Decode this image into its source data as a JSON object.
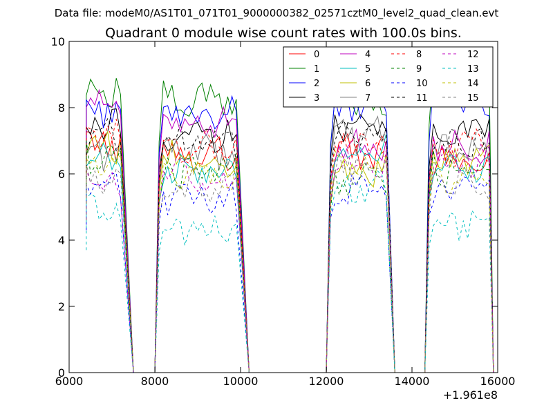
{
  "chart_data": {
    "type": "line",
    "suptitle": "Data file: modeM0/AS1T01_071T01_9000000382_02571cztM0_level2_quad_clean.evt",
    "title": "Quadrant 0 module wise count rates with 100.0s bins.",
    "xlabel": "",
    "ylabel": "",
    "x_offset_label": "+1.961e8",
    "xlim": [
      6000,
      16000
    ],
    "ylim": [
      0,
      10
    ],
    "xticks": [
      "6000",
      "8000",
      "10000",
      "12000",
      "14000",
      "16000"
    ],
    "yticks": [
      "0",
      "2",
      "4",
      "6",
      "8",
      "10"
    ],
    "grid": false,
    "legend": {
      "placement": "top-right",
      "columns": 4
    },
    "segments": [
      {
        "x_start": 6400,
        "x_end": 7200,
        "x_fall": 7500
      },
      {
        "x_start": 8200,
        "x_end": 9900,
        "x_fall": 10200
      },
      {
        "x_start": 12200,
        "x_end": 13400,
        "x_fall": 13600
      },
      {
        "x_start": 14500,
        "x_end": 15800,
        "x_fall": 15900
      }
    ],
    "series": [
      {
        "name": "0",
        "color": "#ff0000",
        "style": "solid",
        "values": [
          6.9,
          6.7,
          6.6,
          6.3
        ]
      },
      {
        "name": "1",
        "color": "#008000",
        "style": "solid",
        "values": [
          8.6,
          8.2,
          8.1,
          8.8
        ]
      },
      {
        "name": "2",
        "color": "#0000ff",
        "style": "solid",
        "values": [
          8.0,
          7.8,
          8.0,
          8.2
        ]
      },
      {
        "name": "3",
        "color": "#000000",
        "style": "solid",
        "values": [
          7.5,
          7.2,
          7.6,
          7.3
        ]
      },
      {
        "name": "4",
        "color": "#bf00bf",
        "style": "solid",
        "values": [
          8.2,
          7.5,
          6.9,
          6.9
        ]
      },
      {
        "name": "5",
        "color": "#00bfbf",
        "style": "solid",
        "values": [
          6.3,
          6.1,
          6.7,
          6.2
        ]
      },
      {
        "name": "6",
        "color": "#bfbf00",
        "style": "solid",
        "values": [
          6.9,
          6.4,
          6.0,
          6.4
        ]
      },
      {
        "name": "7",
        "color": "#808080",
        "style": "solid",
        "values": [
          6.6,
          6.6,
          7.2,
          6.7
        ]
      },
      {
        "name": "8",
        "color": "#ff0000",
        "style": "dashed",
        "values": [
          7.2,
          6.8,
          6.9,
          6.8
        ]
      },
      {
        "name": "9",
        "color": "#008000",
        "style": "dashed",
        "values": [
          6.5,
          6.1,
          5.8,
          6.2
        ]
      },
      {
        "name": "10",
        "color": "#0000ff",
        "style": "dashed",
        "values": [
          5.5,
          5.3,
          5.5,
          5.6
        ]
      },
      {
        "name": "11",
        "color": "#000000",
        "style": "dashed",
        "values": [
          7.1,
          6.9,
          7.2,
          7.0
        ]
      },
      {
        "name": "12",
        "color": "#bf00bf",
        "style": "dashed",
        "values": [
          5.8,
          5.9,
          6.1,
          6.3
        ]
      },
      {
        "name": "13",
        "color": "#00bfbf",
        "style": "dashed",
        "values": [
          4.9,
          4.3,
          5.6,
          4.5
        ]
      },
      {
        "name": "14",
        "color": "#bfbf00",
        "style": "dashed",
        "values": [
          6.3,
          5.9,
          6.2,
          5.9
        ]
      },
      {
        "name": "15",
        "color": "#808080",
        "style": "dashed",
        "values": [
          5.8,
          5.6,
          6.3,
          5.6
        ]
      }
    ]
  }
}
